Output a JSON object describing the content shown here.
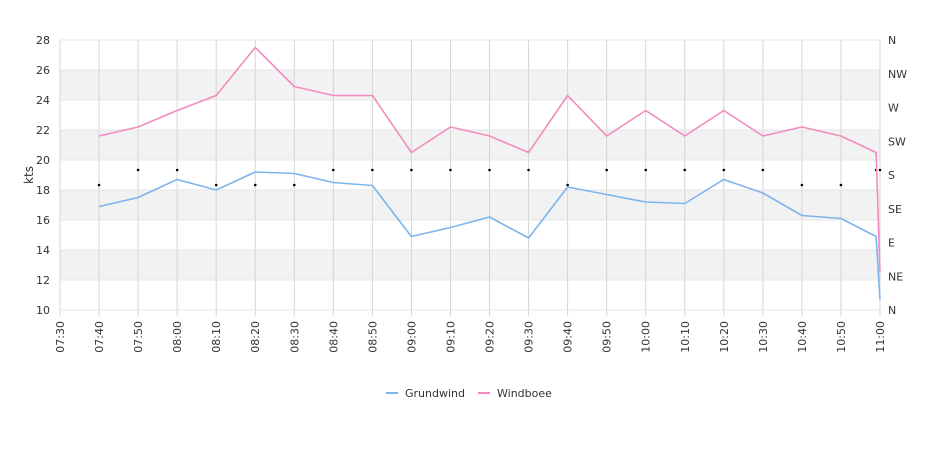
{
  "chart_data": {
    "type": "line",
    "ylabel": "kts",
    "ylim": [
      10,
      28
    ],
    "yticks": [
      10,
      12,
      14,
      16,
      18,
      20,
      22,
      24,
      26,
      28
    ],
    "x_start": "07:30",
    "x_end": "11:00",
    "x_tick_labels": [
      "07:30",
      "07:40",
      "07:50",
      "08:00",
      "08:10",
      "08:20",
      "08:30",
      "08:40",
      "08:50",
      "09:00",
      "09:10",
      "09:20",
      "09:30",
      "09:40",
      "09:50",
      "10:00",
      "10:10",
      "10:20",
      "10:30",
      "10:40",
      "10:50",
      "11:00"
    ],
    "direction_axis_labels": [
      "N",
      "NE",
      "E",
      "SE",
      "S",
      "SW",
      "W",
      "NW",
      "N"
    ],
    "grid": true,
    "legend_position": "bottom-center",
    "series": [
      {
        "name": "Grundwind",
        "color": "#7cb5ec",
        "x": [
          "07:40",
          "07:50",
          "08:00",
          "08:10",
          "08:20",
          "08:30",
          "08:40",
          "08:50",
          "09:00",
          "09:10",
          "09:20",
          "09:30",
          "09:40",
          "09:50",
          "10:00",
          "10:10",
          "10:20",
          "10:30",
          "10:40",
          "10:50",
          "10:59",
          "11:00"
        ],
        "values": [
          16.9,
          17.5,
          18.7,
          18.0,
          19.2,
          19.1,
          18.5,
          18.3,
          14.9,
          15.5,
          16.2,
          14.8,
          18.2,
          17.7,
          17.2,
          17.1,
          18.7,
          17.8,
          16.3,
          16.1,
          14.9,
          10.7
        ]
      },
      {
        "name": "Windboee",
        "color": "#f28cc0",
        "x": [
          "07:40",
          "07:50",
          "08:00",
          "08:10",
          "08:20",
          "08:30",
          "08:40",
          "08:50",
          "09:00",
          "09:10",
          "09:20",
          "09:30",
          "09:40",
          "09:50",
          "10:00",
          "10:10",
          "10:20",
          "10:30",
          "10:40",
          "10:50",
          "10:59",
          "11:00"
        ],
        "values": [
          21.6,
          22.2,
          23.3,
          24.3,
          27.5,
          24.9,
          24.3,
          24.3,
          20.5,
          22.2,
          21.6,
          20.5,
          24.3,
          21.6,
          23.3,
          21.6,
          23.3,
          21.6,
          22.2,
          21.6,
          20.5,
          12.5
        ]
      }
    ],
    "direction_markers": [
      {
        "x": "07:40",
        "dir": "S-SE"
      },
      {
        "x": "07:50",
        "dir": "S"
      },
      {
        "x": "08:00",
        "dir": "S"
      },
      {
        "x": "08:10",
        "dir": "S-SE"
      },
      {
        "x": "08:20",
        "dir": "S-SE"
      },
      {
        "x": "08:30",
        "dir": "S-SE"
      },
      {
        "x": "08:40",
        "dir": "S"
      },
      {
        "x": "08:50",
        "dir": "S"
      },
      {
        "x": "09:00",
        "dir": "S"
      },
      {
        "x": "09:10",
        "dir": "S"
      },
      {
        "x": "09:20",
        "dir": "S"
      },
      {
        "x": "09:30",
        "dir": "S"
      },
      {
        "x": "09:40",
        "dir": "S-SE"
      },
      {
        "x": "09:50",
        "dir": "S"
      },
      {
        "x": "10:00",
        "dir": "S"
      },
      {
        "x": "10:10",
        "dir": "S"
      },
      {
        "x": "10:20",
        "dir": "S"
      },
      {
        "x": "10:30",
        "dir": "S"
      },
      {
        "x": "10:40",
        "dir": "S-SE"
      },
      {
        "x": "10:50",
        "dir": "S-SE"
      },
      {
        "x": "10:59",
        "dir": "S"
      },
      {
        "x": "11:00",
        "dir": "S"
      }
    ]
  }
}
